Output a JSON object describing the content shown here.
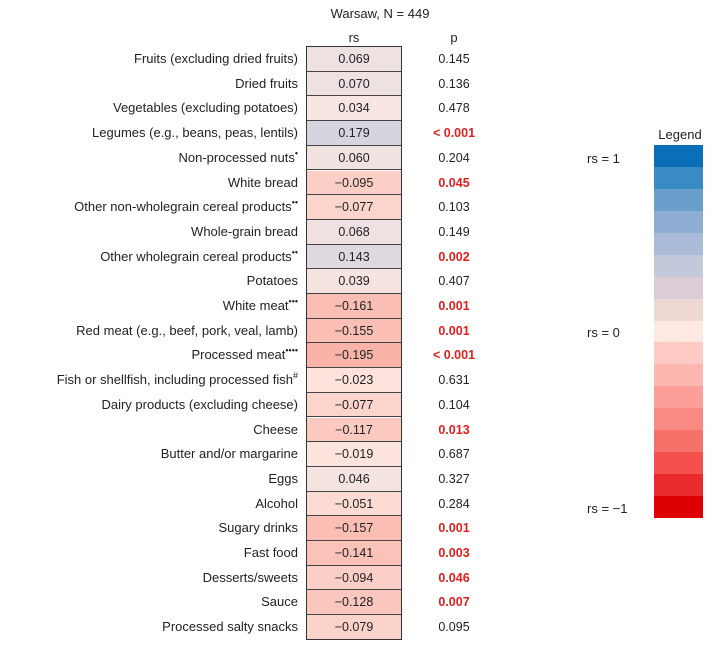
{
  "chart_data": {
    "type": "heatmap",
    "title": "Warsaw, N = 449",
    "columns": [
      "rs",
      "p"
    ],
    "rows": [
      {
        "label": "Fruits (excluding dried fruits)",
        "sup": "",
        "rs": 0.069,
        "rs_text": "0.069",
        "p": "0.145",
        "significant": false
      },
      {
        "label": "Dried fruits",
        "sup": "",
        "rs": 0.07,
        "rs_text": "0.070",
        "p": "0.136",
        "significant": false
      },
      {
        "label": "Vegetables (excluding potatoes)",
        "sup": "",
        "rs": 0.034,
        "rs_text": "0.034",
        "p": "0.478",
        "significant": false
      },
      {
        "label": "Legumes (e.g., beans, peas, lentils)",
        "sup": "",
        "rs": 0.179,
        "rs_text": "0.179",
        "p": "< 0.001",
        "significant": true
      },
      {
        "label": "Non-processed nuts",
        "sup": "•",
        "rs": 0.06,
        "rs_text": "0.060",
        "p": "0.204",
        "significant": false
      },
      {
        "label": "White bread",
        "sup": "",
        "rs": -0.095,
        "rs_text": "−0.095",
        "p": "0.045",
        "significant": true
      },
      {
        "label": "Other non-wholegrain cereal products",
        "sup": "••",
        "rs": -0.077,
        "rs_text": "−0.077",
        "p": "0.103",
        "significant": false
      },
      {
        "label": "Whole-grain bread",
        "sup": "",
        "rs": 0.068,
        "rs_text": "0.068",
        "p": "0.149",
        "significant": false
      },
      {
        "label": "Other wholegrain cereal products",
        "sup": "••",
        "rs": 0.143,
        "rs_text": "0.143",
        "p": "0.002",
        "significant": true
      },
      {
        "label": "Potatoes",
        "sup": "",
        "rs": 0.039,
        "rs_text": "0.039",
        "p": "0.407",
        "significant": false
      },
      {
        "label": "White meat",
        "sup": "•••",
        "rs": -0.161,
        "rs_text": "−0.161",
        "p": "0.001",
        "significant": true
      },
      {
        "label": "Red meat (e.g., beef, pork, veal, lamb)",
        "sup": "",
        "rs": -0.155,
        "rs_text": "−0.155",
        "p": "0.001",
        "significant": true
      },
      {
        "label": "Processed meat",
        "sup": "••••",
        "rs": -0.195,
        "rs_text": "−0.195",
        "p": "< 0.001",
        "significant": true
      },
      {
        "label": "Fish or shellfish, including processed fish",
        "sup": "#",
        "rs": -0.023,
        "rs_text": "−0.023",
        "p": "0.631",
        "significant": false
      },
      {
        "label": "Dairy products (excluding cheese)",
        "sup": "",
        "rs": -0.077,
        "rs_text": "−0.077",
        "p": "0.104",
        "significant": false
      },
      {
        "label": "Cheese",
        "sup": "",
        "rs": -0.117,
        "rs_text": "−0.117",
        "p": "0.013",
        "significant": true
      },
      {
        "label": "Butter and/or margarine",
        "sup": "",
        "rs": -0.019,
        "rs_text": "−0.019",
        "p": "0.687",
        "significant": false
      },
      {
        "label": "Eggs",
        "sup": "",
        "rs": 0.046,
        "rs_text": "0.046",
        "p": "0.327",
        "significant": false
      },
      {
        "label": "Alcohol",
        "sup": "",
        "rs": -0.051,
        "rs_text": "−0.051",
        "p": "0.284",
        "significant": false
      },
      {
        "label": "Sugary drinks",
        "sup": "",
        "rs": -0.157,
        "rs_text": "−0.157",
        "p": "0.001",
        "significant": true
      },
      {
        "label": "Fast food",
        "sup": "",
        "rs": -0.141,
        "rs_text": "−0.141",
        "p": "0.003",
        "significant": true
      },
      {
        "label": "Desserts/sweets",
        "sup": "",
        "rs": -0.094,
        "rs_text": "−0.094",
        "p": "0.046",
        "significant": true
      },
      {
        "label": "Sauce",
        "sup": "",
        "rs": -0.128,
        "rs_text": "−0.128",
        "p": "0.007",
        "significant": true
      },
      {
        "label": "Processed salty snacks",
        "sup": "",
        "rs": -0.079,
        "rs_text": "−0.079",
        "p": "0.095",
        "significant": false
      }
    ],
    "legend": {
      "title": "Legend",
      "labels": [
        {
          "text": "rs = 1",
          "value": 1
        },
        {
          "text": "rs = 0",
          "value": 0
        },
        {
          "text": "rs = −1",
          "value": -1
        }
      ],
      "colors": [
        "#0a6fb8",
        "#3a8bc4",
        "#6a9fcc",
        "#8daed2",
        "#a9bbd6",
        "#c4c8db",
        "#dcccd6",
        "#eed8d4",
        "#fde9e2",
        "#fdcbc4",
        "#fcb7b0",
        "#fb9f98",
        "#f98a83",
        "#f7716b",
        "#f4514d",
        "#ea2b2b",
        "#de0000"
      ]
    },
    "colors": {
      "significant_p": "#e02020"
    }
  }
}
